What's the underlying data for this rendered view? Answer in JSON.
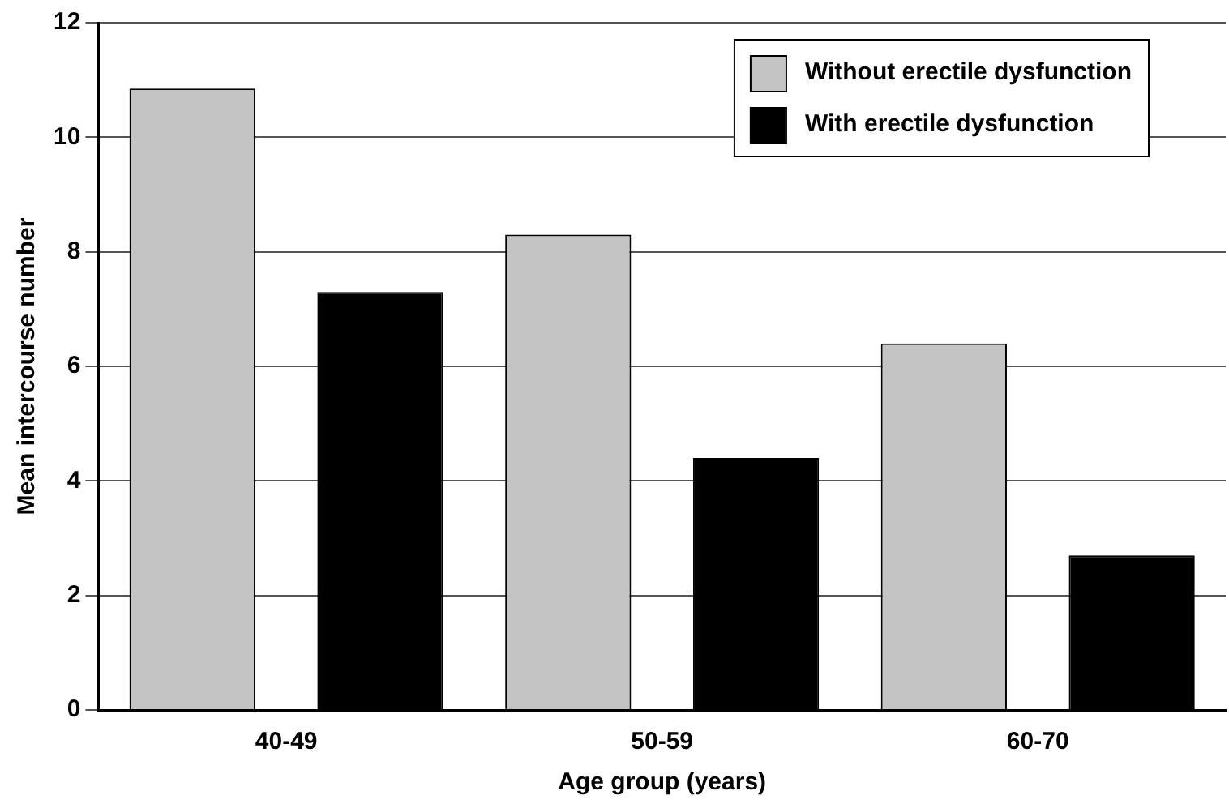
{
  "chart_data": {
    "type": "bar",
    "xlabel": "Age group (years)",
    "ylabel": "Mean intercourse number",
    "categories": [
      "40-49",
      "50-59",
      "60-70"
    ],
    "series": [
      {
        "name": "Without erectile dysfunction",
        "color": "#c4c4c4",
        "values": [
          10.85,
          8.3,
          6.4
        ]
      },
      {
        "name": "With erectile dysfunction",
        "color": "#000000",
        "values": [
          7.3,
          4.4,
          2.7
        ]
      }
    ],
    "ylim": [
      0,
      12
    ],
    "yticks": [
      0,
      2,
      4,
      6,
      8,
      10,
      12
    ],
    "grid": "y",
    "legend": "top right"
  }
}
